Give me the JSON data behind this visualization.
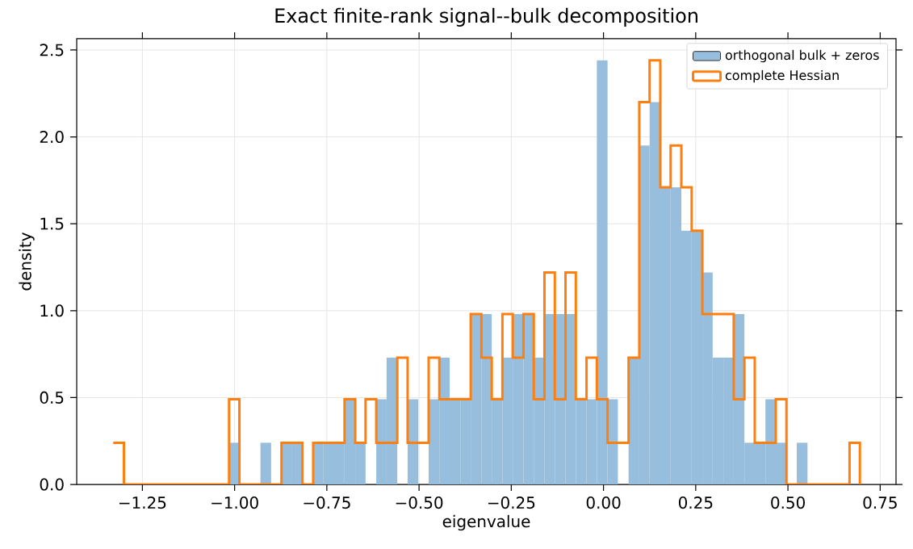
{
  "chart_data": {
    "type": "histogram",
    "title": "Exact finite-rank signal--bulk decomposition",
    "xlabel": "eigenvalue",
    "ylabel": "density",
    "bins": [
      -1.329,
      -1.3,
      -1.272,
      -1.243,
      -1.215,
      -1.186,
      -1.158,
      -1.129,
      -1.101,
      -1.072,
      -1.044,
      -1.015,
      -0.987,
      -0.958,
      -0.93,
      -0.901,
      -0.873,
      -0.844,
      -0.816,
      -0.787,
      -0.759,
      -0.73,
      -0.702,
      -0.673,
      -0.645,
      -0.616,
      -0.588,
      -0.559,
      -0.531,
      -0.502,
      -0.474,
      -0.445,
      -0.417,
      -0.388,
      -0.36,
      -0.331,
      -0.303,
      -0.274,
      -0.246,
      -0.217,
      -0.189,
      -0.16,
      -0.132,
      -0.103,
      -0.075,
      -0.046,
      -0.018,
      0.011,
      0.039,
      0.068,
      0.097,
      0.125,
      0.154,
      0.182,
      0.211,
      0.239,
      0.268,
      0.296,
      0.325,
      0.353,
      0.382,
      0.41,
      0.439,
      0.467,
      0.496,
      0.524,
      0.553,
      0.581,
      0.61,
      0.638,
      0.667,
      0.695
    ],
    "series": [
      {
        "name": "orthogonal bulk + zeros",
        "color": "#97bedc",
        "values": [
          0,
          0,
          0,
          0,
          0,
          0,
          0,
          0,
          0,
          0,
          0,
          0.24,
          0,
          0,
          0.24,
          0,
          0.24,
          0.24,
          0,
          0.24,
          0.24,
          0.24,
          0.49,
          0.24,
          0,
          0.49,
          0.73,
          0,
          0.49,
          0,
          0.49,
          0.73,
          0.49,
          0.49,
          0.98,
          0.98,
          0.49,
          0.73,
          0.98,
          0.98,
          0.73,
          0.98,
          0.98,
          0.98,
          0.49,
          0.49,
          2.44,
          0.49,
          0,
          0.73,
          1.95,
          2.2,
          1.71,
          1.71,
          1.46,
          1.46,
          1.22,
          0.73,
          0.73,
          0.98,
          0.24,
          0.24,
          0.49,
          0.24,
          0,
          0.24,
          0,
          0,
          0,
          0,
          0
        ]
      },
      {
        "name": "complete Hessian",
        "type": "step",
        "color": "#ff7f0e",
        "x": [
          -1.329,
          -1.3,
          -1.272,
          -1.243,
          -1.215,
          -1.186,
          -1.158,
          -1.129,
          -1.101,
          -1.072,
          -1.044,
          -1.015,
          -0.987,
          -0.958,
          -0.93,
          -0.901,
          -0.873,
          -0.844,
          -0.816,
          -0.787,
          -0.759,
          -0.73,
          -0.702,
          -0.673,
          -0.645,
          -0.616,
          -0.588,
          -0.559,
          -0.531,
          -0.502,
          -0.474,
          -0.445,
          -0.417,
          -0.388,
          -0.36,
          -0.331,
          -0.303,
          -0.274,
          -0.246,
          -0.217,
          -0.189,
          -0.16,
          -0.132,
          -0.103,
          -0.075,
          -0.046,
          -0.018,
          0.011,
          0.039,
          0.068,
          0.097,
          0.125,
          0.154,
          0.182,
          0.211,
          0.239,
          0.268,
          0.296,
          0.325,
          0.353,
          0.382,
          0.41,
          0.439,
          0.467,
          0.496,
          0.524,
          0.553,
          0.581,
          0.61,
          0.638,
          0.667,
          0.695
        ],
        "values": [
          0.24,
          0,
          0,
          0,
          0,
          0,
          0,
          0,
          0,
          0,
          0,
          0.49,
          0,
          0,
          0,
          0,
          0.24,
          0.24,
          0,
          0.24,
          0.24,
          0.24,
          0.49,
          0.24,
          0.49,
          0.24,
          0.24,
          0.73,
          0.24,
          0.24,
          0.73,
          0.49,
          0.49,
          0.49,
          0.98,
          0.73,
          0.49,
          0.98,
          0.73,
          0.98,
          0.49,
          1.22,
          0.49,
          1.22,
          0.49,
          0.73,
          0.49,
          0.24,
          0.24,
          0.73,
          2.2,
          2.44,
          1.71,
          1.95,
          1.71,
          1.46,
          0.98,
          0.98,
          0.98,
          0.49,
          0.73,
          0.24,
          0.24,
          0.49,
          0,
          0,
          0,
          0,
          0,
          0,
          0.24,
          0
        ]
      }
    ],
    "xlim": [
      -1.428,
      0.793
    ],
    "ylim": [
      0,
      2.565
    ],
    "xticks": [
      {
        "value": -1.25,
        "label": "−1.25"
      },
      {
        "value": -1.0,
        "label": "−1.00"
      },
      {
        "value": -0.75,
        "label": "−0.75"
      },
      {
        "value": -0.5,
        "label": "−0.50"
      },
      {
        "value": -0.25,
        "label": "−0.25"
      },
      {
        "value": 0,
        "label": "0.00"
      },
      {
        "value": 0.25,
        "label": "0.25"
      },
      {
        "value": 0.5,
        "label": "0.50"
      },
      {
        "value": 0.75,
        "label": "0.75"
      }
    ],
    "yticks": [
      {
        "value": 0,
        "label": "0.0"
      },
      {
        "value": 0.5,
        "label": "0.5"
      },
      {
        "value": 1.0,
        "label": "1.0"
      },
      {
        "value": 1.5,
        "label": "1.5"
      },
      {
        "value": 2.0,
        "label": "2.0"
      },
      {
        "value": 2.5,
        "label": "2.5"
      }
    ],
    "grid": true,
    "legend": "top right"
  }
}
